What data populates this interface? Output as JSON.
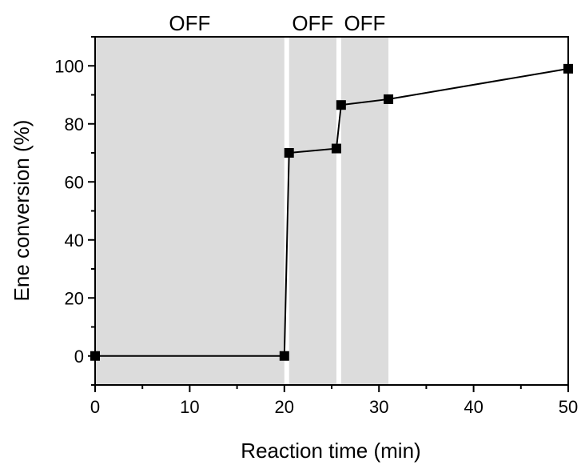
{
  "chart_data": {
    "type": "line",
    "title": "",
    "xlabel": "Reaction time (min)",
    "ylabel": "Ene conversion (%)",
    "xlim": [
      0,
      50
    ],
    "ylim": [
      -10,
      110
    ],
    "x_ticks": [
      0,
      10,
      20,
      30,
      40,
      50
    ],
    "y_ticks": [
      0,
      20,
      40,
      60,
      80,
      100
    ],
    "grid": false,
    "legend": "none",
    "off_regions": [
      {
        "label": "OFF",
        "x_start": 0,
        "x_end": 20
      },
      {
        "label": "OFF",
        "x_start": 20.5,
        "x_end": 25.5
      },
      {
        "label": "OFF",
        "x_start": 26,
        "x_end": 31
      }
    ],
    "series": [
      {
        "marker": "square",
        "color": "#000000",
        "x": [
          0,
          20,
          20.5,
          25.5,
          26,
          31,
          50
        ],
        "y": [
          0,
          0,
          70,
          71.5,
          86.5,
          88.5,
          99
        ]
      }
    ],
    "region_color": "#dcdcdc"
  }
}
